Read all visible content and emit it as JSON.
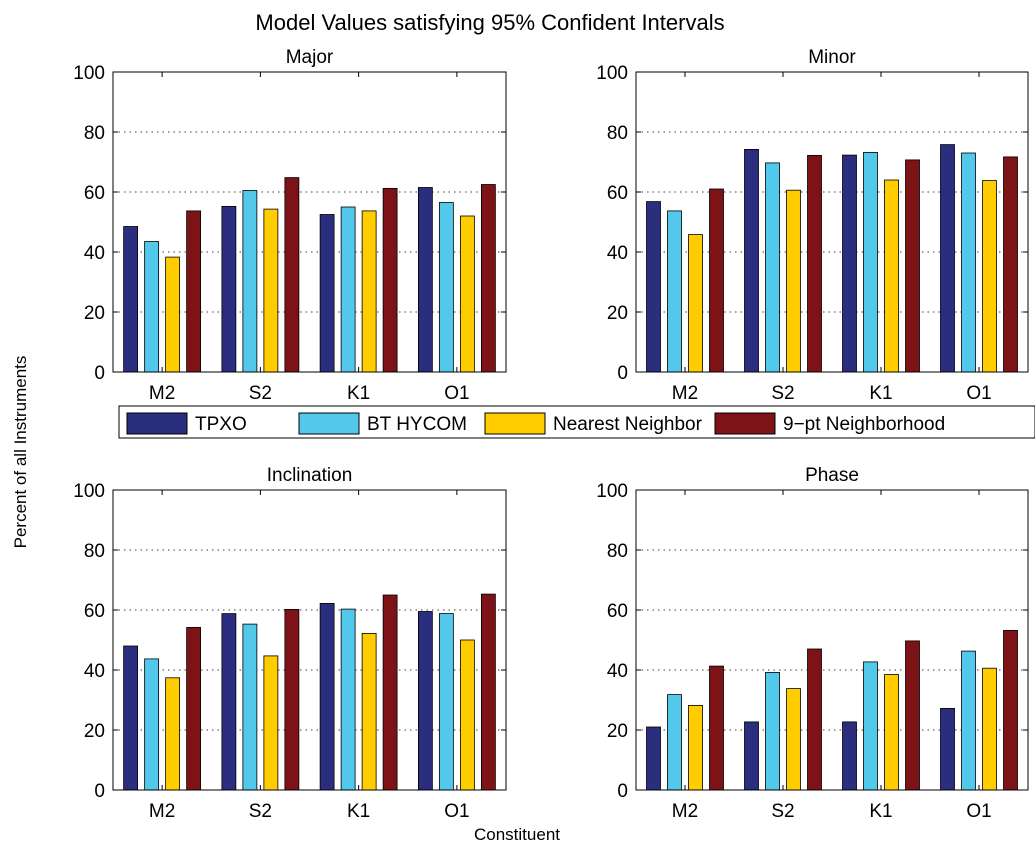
{
  "figure": {
    "title": "Model Values satisfying 95% Confident Intervals",
    "ylabel": "Percent of all Instruments",
    "xlabel": "Constituent"
  },
  "legend": [
    {
      "name": "TPXO",
      "color": "#2b2d7e"
    },
    {
      "name": "BT HYCOM",
      "color": "#52c8eb"
    },
    {
      "name": "Nearest Neighbor",
      "color": "#ffcc00"
    },
    {
      "name": "9−pt Neighborhood",
      "color": "#7d1317"
    }
  ],
  "chart_data": [
    {
      "type": "bar",
      "title": "Major",
      "categories": [
        "M2",
        "S2",
        "K1",
        "O1"
      ],
      "ylim": [
        0,
        100
      ],
      "yticks": [
        0,
        20,
        40,
        60,
        80,
        100
      ],
      "grid": true,
      "series": [
        {
          "name": "TPXO",
          "values": [
            48.5,
            55.2,
            52.5,
            61.5
          ]
        },
        {
          "name": "BT HYCOM",
          "values": [
            43.5,
            60.5,
            55.0,
            56.5
          ]
        },
        {
          "name": "Nearest Neighbor",
          "values": [
            38.3,
            54.3,
            53.7,
            52.0
          ]
        },
        {
          "name": "9−pt Neighborhood",
          "values": [
            53.7,
            64.8,
            61.2,
            62.5
          ]
        }
      ]
    },
    {
      "type": "bar",
      "title": "Minor",
      "categories": [
        "M2",
        "S2",
        "K1",
        "O1"
      ],
      "ylim": [
        0,
        100
      ],
      "yticks": [
        0,
        20,
        40,
        60,
        80,
        100
      ],
      "grid": true,
      "series": [
        {
          "name": "TPXO",
          "values": [
            56.8,
            74.2,
            72.3,
            75.8
          ]
        },
        {
          "name": "BT HYCOM",
          "values": [
            53.7,
            69.7,
            73.2,
            73.0
          ]
        },
        {
          "name": "Nearest Neighbor",
          "values": [
            45.8,
            60.6,
            64.0,
            63.8
          ]
        },
        {
          "name": "9−pt Neighborhood",
          "values": [
            61.0,
            72.2,
            70.7,
            71.7
          ]
        }
      ]
    },
    {
      "type": "bar",
      "title": "Inclination",
      "categories": [
        "M2",
        "S2",
        "K1",
        "O1"
      ],
      "ylim": [
        0,
        100
      ],
      "yticks": [
        0,
        20,
        40,
        60,
        80,
        100
      ],
      "grid": true,
      "series": [
        {
          "name": "TPXO",
          "values": [
            48.0,
            58.8,
            62.2,
            59.5
          ]
        },
        {
          "name": "BT HYCOM",
          "values": [
            43.7,
            55.3,
            60.3,
            58.8
          ]
        },
        {
          "name": "Nearest Neighbor",
          "values": [
            37.4,
            44.7,
            52.2,
            50.0
          ]
        },
        {
          "name": "9−pt Neighborhood",
          "values": [
            54.2,
            60.2,
            65.0,
            65.3
          ]
        }
      ]
    },
    {
      "type": "bar",
      "title": "Phase",
      "categories": [
        "M2",
        "S2",
        "K1",
        "O1"
      ],
      "ylim": [
        0,
        100
      ],
      "yticks": [
        0,
        20,
        40,
        60,
        80,
        100
      ],
      "grid": true,
      "series": [
        {
          "name": "TPXO",
          "values": [
            21.0,
            22.7,
            22.7,
            27.2
          ]
        },
        {
          "name": "BT HYCOM",
          "values": [
            31.8,
            39.2,
            42.7,
            46.3
          ]
        },
        {
          "name": "Nearest Neighbor",
          "values": [
            28.2,
            33.8,
            38.5,
            40.6
          ]
        },
        {
          "name": "9−pt Neighborhood",
          "values": [
            41.3,
            47.0,
            49.7,
            53.2
          ]
        }
      ]
    }
  ]
}
